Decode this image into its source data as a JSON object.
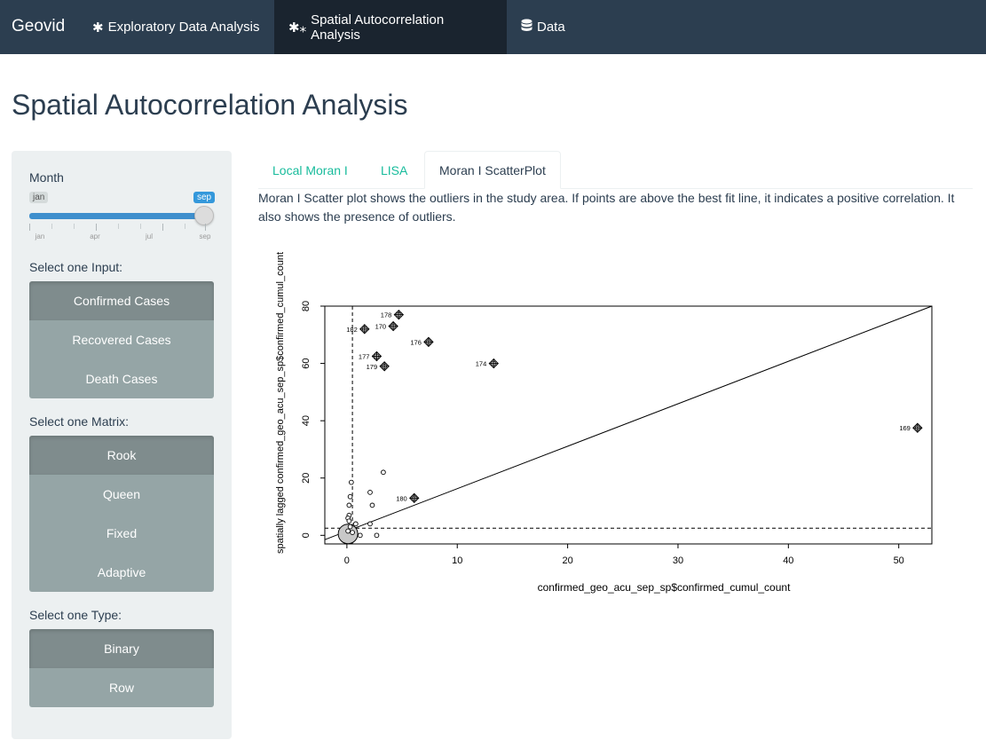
{
  "navbar": {
    "brand": "Geovid",
    "items": [
      {
        "label": "Exploratory Data Analysis",
        "icon": "gear-icon",
        "glyph": "✱"
      },
      {
        "label": "Spatial Autocorrelation Analysis",
        "icon": "gears-icon",
        "glyph": "✱⁎"
      },
      {
        "label": "Data",
        "icon": "database-icon",
        "glyph": "🛢"
      }
    ]
  },
  "page_title": "Spatial Autocorrelation Analysis",
  "sidebar": {
    "month_label": "Month",
    "slider": {
      "min_label": "jan",
      "value_label": "sep",
      "tick_labels": [
        "jan",
        "apr",
        "jul",
        "sep"
      ],
      "value_fraction": 1.0
    },
    "input_label": "Select one Input:",
    "inputs": [
      "Confirmed Cases",
      "Recovered Cases",
      "Death Cases"
    ],
    "input_selected": "Confirmed Cases",
    "matrix_label": "Select one Matrix:",
    "matrices": [
      "Rook",
      "Queen",
      "Fixed",
      "Adaptive"
    ],
    "matrix_selected": "Rook",
    "type_label": "Select one Type:",
    "types": [
      "Binary",
      "Row"
    ],
    "type_selected": "Binary"
  },
  "tabs": [
    "Local Moran I",
    "LISA",
    "Moran I ScatterPlot"
  ],
  "active_tab": "Moran I ScatterPlot",
  "description": "Moran I Scatter plot shows the outliers in the study area. If points are above the best fit line, it indicates a positive correlation. It also shows the presence of outliers.",
  "chart_data": {
    "type": "scatter",
    "xlabel": "confirmed_geo_acu_sep_sp$confirmed_cumul_count",
    "ylabel": "spatially lagged confirmed_geo_acu_sep_sp$confirmed_cumul_count",
    "xlim": [
      -2,
      53
    ],
    "ylim": [
      -3,
      80
    ],
    "x_ticks": [
      0,
      10,
      20,
      30,
      40,
      50
    ],
    "y_ticks": [
      0,
      20,
      40,
      60,
      80
    ],
    "mean_x": 0.5,
    "mean_y": 2.5,
    "fit_line": {
      "x0": -2,
      "y0": -1.5,
      "x1": 53,
      "y1": 80
    },
    "influential_points": [
      {
        "id": "178",
        "x": 4.7,
        "y": 77
      },
      {
        "id": "182",
        "x": 1.6,
        "y": 72
      },
      {
        "id": "170",
        "x": 4.2,
        "y": 73
      },
      {
        "id": "176",
        "x": 7.4,
        "y": 67.5
      },
      {
        "id": "177",
        "x": 2.7,
        "y": 62.5
      },
      {
        "id": "179",
        "x": 3.4,
        "y": 59
      },
      {
        "id": "174",
        "x": 13.3,
        "y": 60
      },
      {
        "id": "169",
        "x": 51.7,
        "y": 37.5
      },
      {
        "id": "180",
        "x": 6.1,
        "y": 13
      }
    ],
    "other_points": [
      {
        "x": 3.3,
        "y": 22
      },
      {
        "x": 0.4,
        "y": 18.5
      },
      {
        "x": 2.1,
        "y": 15
      },
      {
        "x": 0.3,
        "y": 13.5
      },
      {
        "x": 0.2,
        "y": 10.5
      },
      {
        "x": 2.3,
        "y": 10.5
      },
      {
        "x": 0.2,
        "y": 7
      },
      {
        "x": 0.1,
        "y": 6
      },
      {
        "x": 0.2,
        "y": 5
      },
      {
        "x": 2.1,
        "y": 4
      },
      {
        "x": 0.8,
        "y": 4
      },
      {
        "x": 0.3,
        "y": 3
      },
      {
        "x": 1.2,
        "y": 0
      },
      {
        "x": 2.7,
        "y": 0
      },
      {
        "x": 0.5,
        "y": 1
      },
      {
        "x": 0.1,
        "y": 1.5
      }
    ],
    "cluster": {
      "x": 0.1,
      "y": 0.5
    }
  }
}
